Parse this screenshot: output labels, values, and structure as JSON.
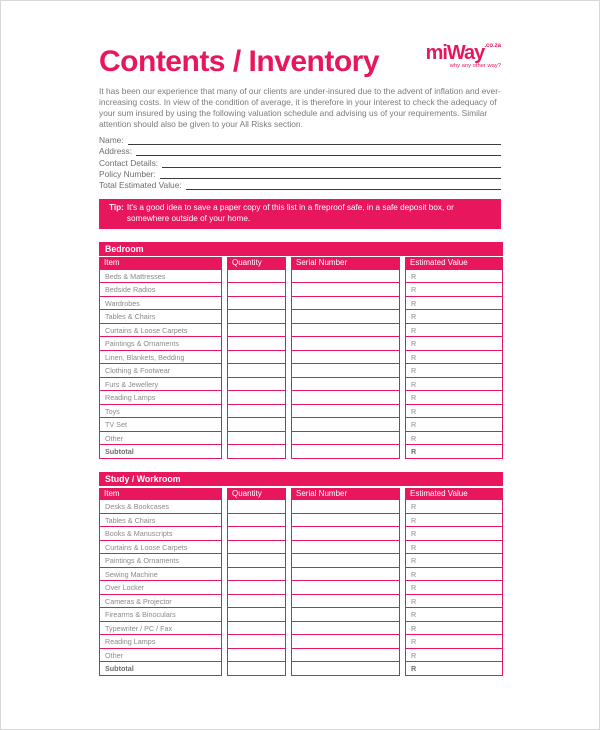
{
  "header": {
    "title": "Contents / Inventory",
    "logo": {
      "brand": "miWay",
      "suffix": ".co.za",
      "tagline": "why any other way?"
    }
  },
  "intro": "It has been our experience that many of our clients are under-insured due to the advent of inflation and ever-increasing costs. In view of the condition of average, it is therefore in your interest to check the adequacy of your sum insured by using the following valuation schedule and advising us of your requirements. Similar attention should also be given to your All Risks section.",
  "fields": [
    {
      "label": "Name:",
      "value": ""
    },
    {
      "label": "Address:",
      "value": ""
    },
    {
      "label": "Contact Details:",
      "value": ""
    },
    {
      "label": "Policy Number:",
      "value": ""
    },
    {
      "label": "Total Estimated Value:",
      "value": ""
    }
  ],
  "tip": {
    "label": "Tip:",
    "text": "It's a good idea to save a paper copy of this list in a fireproof safe, in a safe deposit box, or somewhere outside of your home."
  },
  "currency_symbol": "R",
  "colors": {
    "accent": "#E8175D",
    "body_text_gray": "#7B7B7B",
    "table_text_gray": "#8A8A8A",
    "field_line_dark": "#3C3C3C",
    "page_border": "#D8D8D8",
    "header_text": "#FFFFFF"
  },
  "tables": [
    {
      "section": "Bedroom",
      "columns": [
        "Item",
        "Quantity",
        "Serial Number",
        "Estimated Value"
      ],
      "rows": [
        {
          "item": "Beds & Mattresses",
          "quantity": "",
          "serial_number": "",
          "estimated_value": "R",
          "bold": false
        },
        {
          "item": "Bedside Radios",
          "quantity": "",
          "serial_number": "",
          "estimated_value": "R",
          "bold": false
        },
        {
          "item": "Wardrobes",
          "quantity": "",
          "serial_number": "",
          "estimated_value": "R",
          "bold": false
        },
        {
          "item": "Tables & Chairs",
          "quantity": "",
          "serial_number": "",
          "estimated_value": "R",
          "bold": false
        },
        {
          "item": "Curtains & Loose Carpets",
          "quantity": "",
          "serial_number": "",
          "estimated_value": "R",
          "bold": false
        },
        {
          "item": "Paintings & Ornaments",
          "quantity": "",
          "serial_number": "",
          "estimated_value": "R",
          "bold": false
        },
        {
          "item": "Linen, Blankets, Bedding",
          "quantity": "",
          "serial_number": "",
          "estimated_value": "R",
          "bold": false
        },
        {
          "item": "Clothing & Footwear",
          "quantity": "",
          "serial_number": "",
          "estimated_value": "R",
          "bold": false
        },
        {
          "item": "Furs & Jewellery",
          "quantity": "",
          "serial_number": "",
          "estimated_value": "R",
          "bold": false
        },
        {
          "item": "Reading Lamps",
          "quantity": "",
          "serial_number": "",
          "estimated_value": "R",
          "bold": false
        },
        {
          "item": "Toys",
          "quantity": "",
          "serial_number": "",
          "estimated_value": "R",
          "bold": false
        },
        {
          "item": "TV Set",
          "quantity": "",
          "serial_number": "",
          "estimated_value": "R",
          "bold": false
        },
        {
          "item": "Other",
          "quantity": "",
          "serial_number": "",
          "estimated_value": "R",
          "bold": false
        },
        {
          "item": "Subtotal",
          "quantity": "",
          "serial_number": "",
          "estimated_value": "R",
          "bold": true
        }
      ]
    },
    {
      "section": "Study / Workroom",
      "columns": [
        "Item",
        "Quantity",
        "Serial Number",
        "Estimated Value"
      ],
      "rows": [
        {
          "item": "Desks & Bookcases",
          "quantity": "",
          "serial_number": "",
          "estimated_value": "R",
          "bold": false
        },
        {
          "item": "Tables & Chairs",
          "quantity": "",
          "serial_number": "",
          "estimated_value": "R",
          "bold": false
        },
        {
          "item": "Books & Manuscripts",
          "quantity": "",
          "serial_number": "",
          "estimated_value": "R",
          "bold": false
        },
        {
          "item": "Curtains & Loose Carpets",
          "quantity": "",
          "serial_number": "",
          "estimated_value": "R",
          "bold": false
        },
        {
          "item": "Paintings & Ornaments",
          "quantity": "",
          "serial_number": "",
          "estimated_value": "R",
          "bold": false
        },
        {
          "item": "Sewing Machine",
          "quantity": "",
          "serial_number": "",
          "estimated_value": "R",
          "bold": false
        },
        {
          "item": "Over Locker",
          "quantity": "",
          "serial_number": "",
          "estimated_value": "R",
          "bold": false
        },
        {
          "item": "Cameras & Projector",
          "quantity": "",
          "serial_number": "",
          "estimated_value": "R",
          "bold": false
        },
        {
          "item": "Firearms & Binoculars",
          "quantity": "",
          "serial_number": "",
          "estimated_value": "R",
          "bold": false
        },
        {
          "item": "Typewriter / PC / Fax",
          "quantity": "",
          "serial_number": "",
          "estimated_value": "R",
          "bold": false
        },
        {
          "item": "Reading Lamps",
          "quantity": "",
          "serial_number": "",
          "estimated_value": "R",
          "bold": false
        },
        {
          "item": "Other",
          "quantity": "",
          "serial_number": "",
          "estimated_value": "R",
          "bold": false
        },
        {
          "item": "Subtotal",
          "quantity": "",
          "serial_number": "",
          "estimated_value": "R",
          "bold": true
        }
      ]
    }
  ]
}
